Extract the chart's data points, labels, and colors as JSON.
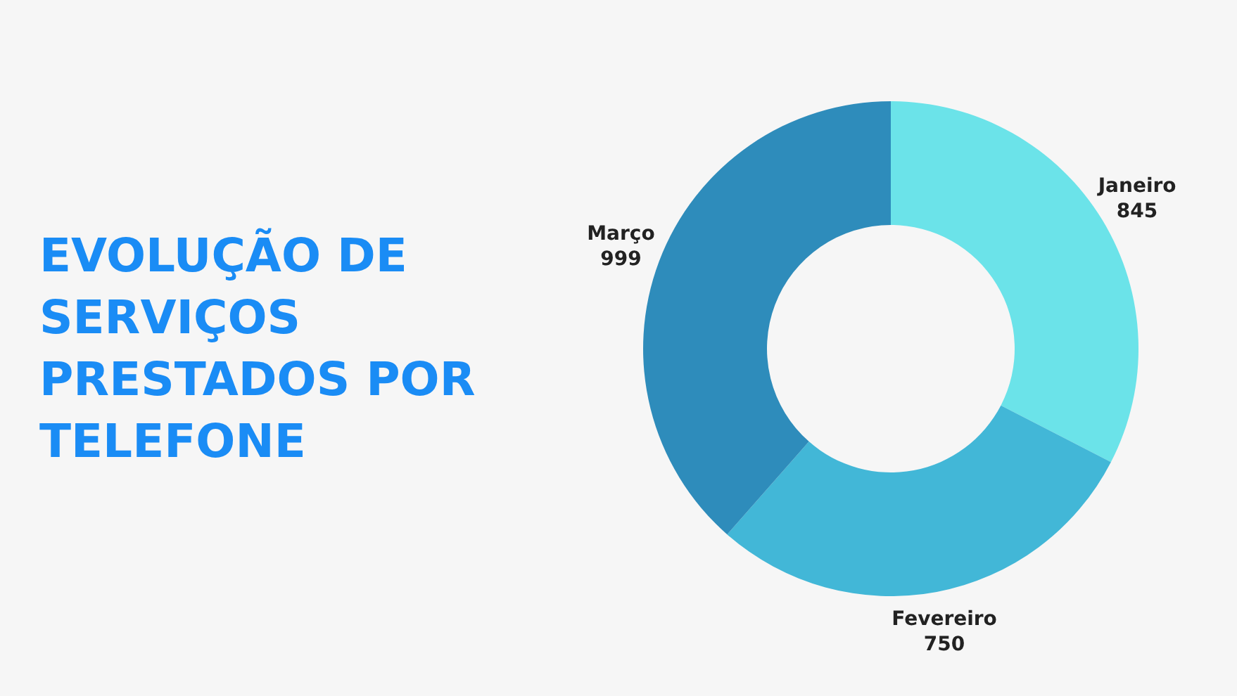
{
  "chart_data": {
    "type": "donut",
    "title": "EVOLUÇÃO DE SERVIÇOS PRESTADOS POR TELEFONE",
    "categories": [
      "Janeiro",
      "Fevereiro",
      "Março"
    ],
    "values": [
      845,
      750,
      999
    ],
    "colors": [
      "#6be3e9",
      "#42b7d7",
      "#2e8cbb"
    ],
    "data_labels": true
  }
}
